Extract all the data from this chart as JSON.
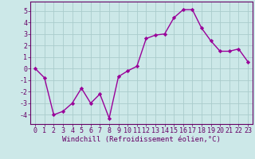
{
  "x": [
    0,
    1,
    2,
    3,
    4,
    5,
    6,
    7,
    8,
    9,
    10,
    11,
    12,
    13,
    14,
    15,
    16,
    17,
    18,
    19,
    20,
    21,
    22,
    23
  ],
  "y": [
    0,
    -0.8,
    -4.0,
    -3.7,
    -3.0,
    -1.7,
    -3.0,
    -2.2,
    -4.3,
    -0.7,
    -0.2,
    0.2,
    2.6,
    2.9,
    3.0,
    4.4,
    5.1,
    5.1,
    3.5,
    2.4,
    1.5,
    1.5,
    1.7,
    0.6
  ],
  "line_color": "#990099",
  "marker": "D",
  "markersize": 2.2,
  "linewidth": 1.0,
  "bg_color": "#cce8e8",
  "grid_color": "#aacccc",
  "xlabel": "Windchill (Refroidissement éolien,°C)",
  "xlabel_fontsize": 6.5,
  "tick_fontsize": 6.0,
  "ylim": [
    -4.8,
    5.8
  ],
  "yticks": [
    -4,
    -3,
    -2,
    -1,
    0,
    1,
    2,
    3,
    4,
    5
  ],
  "title_color": "#660066",
  "spine_color": "#660066"
}
